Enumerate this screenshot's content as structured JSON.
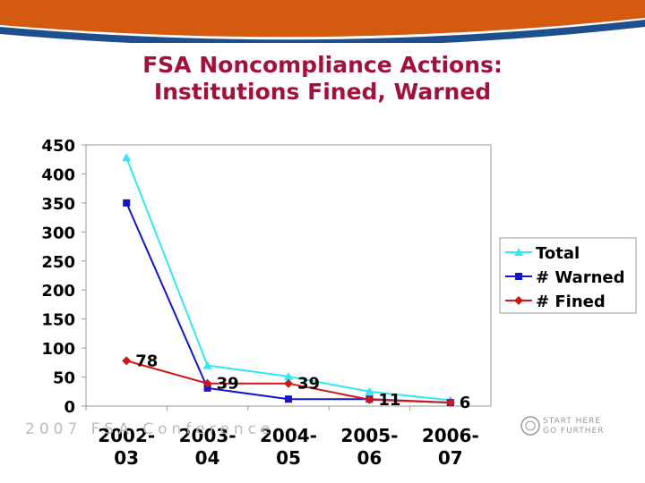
{
  "slide": {
    "title_line1": "FSA Noncompliance Actions:",
    "title_line2": "Institutions Fined, Warned",
    "footer_text": "2007 FSA Conference",
    "logo_line1": "START HERE",
    "logo_line2": "GO FURTHER",
    "band_color": "#d35a0f",
    "band_accent": "#1f4e8c",
    "title_color": "#a0123c"
  },
  "chart_data": {
    "type": "line",
    "title": "",
    "xlabel": "",
    "ylabel": "",
    "categories": [
      "2002-03",
      "2003-04",
      "2004-05",
      "2005-06",
      "2006-07"
    ],
    "category_lines": [
      [
        "2002-",
        "03"
      ],
      [
        "2003-",
        "04"
      ],
      [
        "2004-",
        "05"
      ],
      [
        "2005-",
        "06"
      ],
      [
        "2006-",
        "07"
      ]
    ],
    "yticks": [
      0,
      50,
      100,
      150,
      200,
      250,
      300,
      350,
      400,
      450
    ],
    "ylim": [
      0,
      450
    ],
    "grid": false,
    "legend_position": "right",
    "series": [
      {
        "name": "Total",
        "values": [
          428,
          70,
          51,
          25,
          10
        ],
        "color": "#33e6f0",
        "marker": "triangle",
        "labels": []
      },
      {
        "name": "# Warned",
        "values": [
          350,
          31,
          12,
          12,
          6
        ],
        "color": "#1515c8",
        "marker": "square",
        "labels": []
      },
      {
        "name": "# Fined",
        "values": [
          78,
          39,
          39,
          11,
          6
        ],
        "color": "#cc1818",
        "marker": "diamond",
        "labels": [
          "78",
          "39",
          "39",
          "11",
          "6"
        ]
      }
    ]
  }
}
